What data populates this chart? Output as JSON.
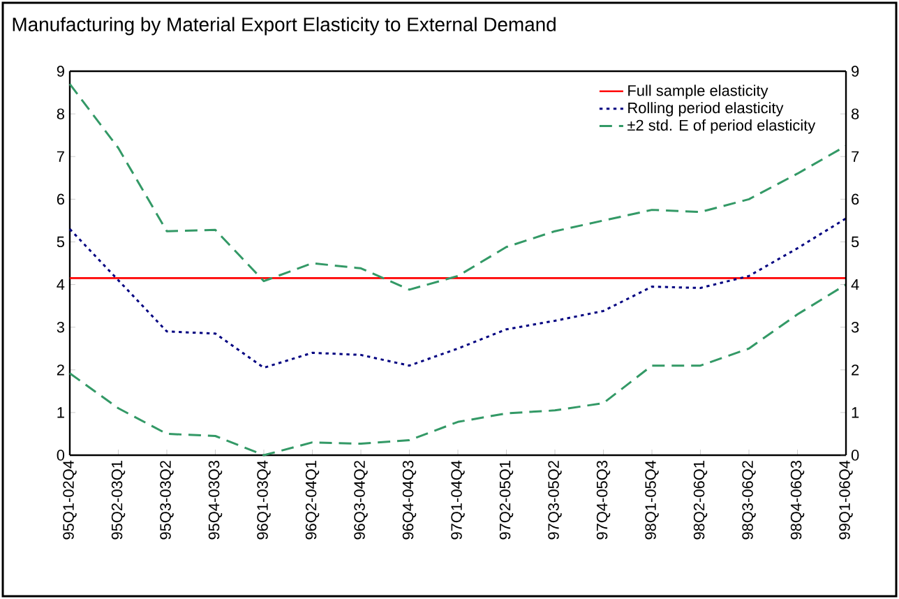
{
  "chart_data": {
    "type": "line",
    "title": "Manufacturing by Material Export Elasticity to External Demand",
    "categories": [
      "95Q1-02Q4",
      "95Q2-03Q1",
      "95Q3-03Q2",
      "95Q4-03Q3",
      "96Q1-03Q4",
      "96Q2-04Q1",
      "96Q3-04Q2",
      "96Q4-04Q3",
      "97Q1-04Q4",
      "97Q2-05Q1",
      "97Q3-05Q2",
      "97Q4-05Q3",
      "98Q1-05Q4",
      "98Q2-06Q1",
      "98Q3-06Q2",
      "98Q4-06Q3",
      "99Q1-06Q4"
    ],
    "series": [
      {
        "name": "Rolling period elasticity",
        "color": "#000080",
        "line_style": "dotted",
        "values": [
          5.3,
          4.1,
          2.9,
          2.85,
          2.05,
          2.4,
          2.35,
          2.1,
          2.5,
          2.95,
          3.15,
          3.38,
          3.95,
          3.92,
          4.2,
          4.85,
          5.55
        ]
      },
      {
        "name": "±2 std. E of period elasticity",
        "color": "#339966",
        "line_style": "dashed",
        "values": [
          8.7,
          7.2,
          5.25,
          5.28,
          4.08,
          4.5,
          4.38,
          3.88,
          4.2,
          4.88,
          5.25,
          5.5,
          5.75,
          5.7,
          6.0,
          6.6,
          7.25
        ]
      },
      {
        "color": "#339966",
        "line_style": "dashed",
        "values": [
          1.92,
          1.1,
          0.5,
          0.45,
          0.0,
          0.3,
          0.27,
          0.35,
          0.78,
          0.98,
          1.05,
          1.22,
          2.1,
          2.1,
          2.5,
          3.3,
          4.0
        ]
      }
    ],
    "ref_lines": [
      {
        "axis": "y",
        "value": 4.15,
        "label": "Full sample elasticity",
        "color": "#ff0000",
        "line_style": "solid"
      }
    ],
    "ylim": [
      0,
      9
    ],
    "yticks": [
      0,
      1,
      2,
      3,
      4,
      5,
      6,
      7,
      8,
      9
    ],
    "y2lim": [
      0,
      9
    ],
    "y2ticks": [
      0,
      1,
      2,
      3,
      4,
      5,
      6,
      7,
      8,
      9
    ],
    "grid": false,
    "legend": "top right",
    "marker": "none"
  }
}
